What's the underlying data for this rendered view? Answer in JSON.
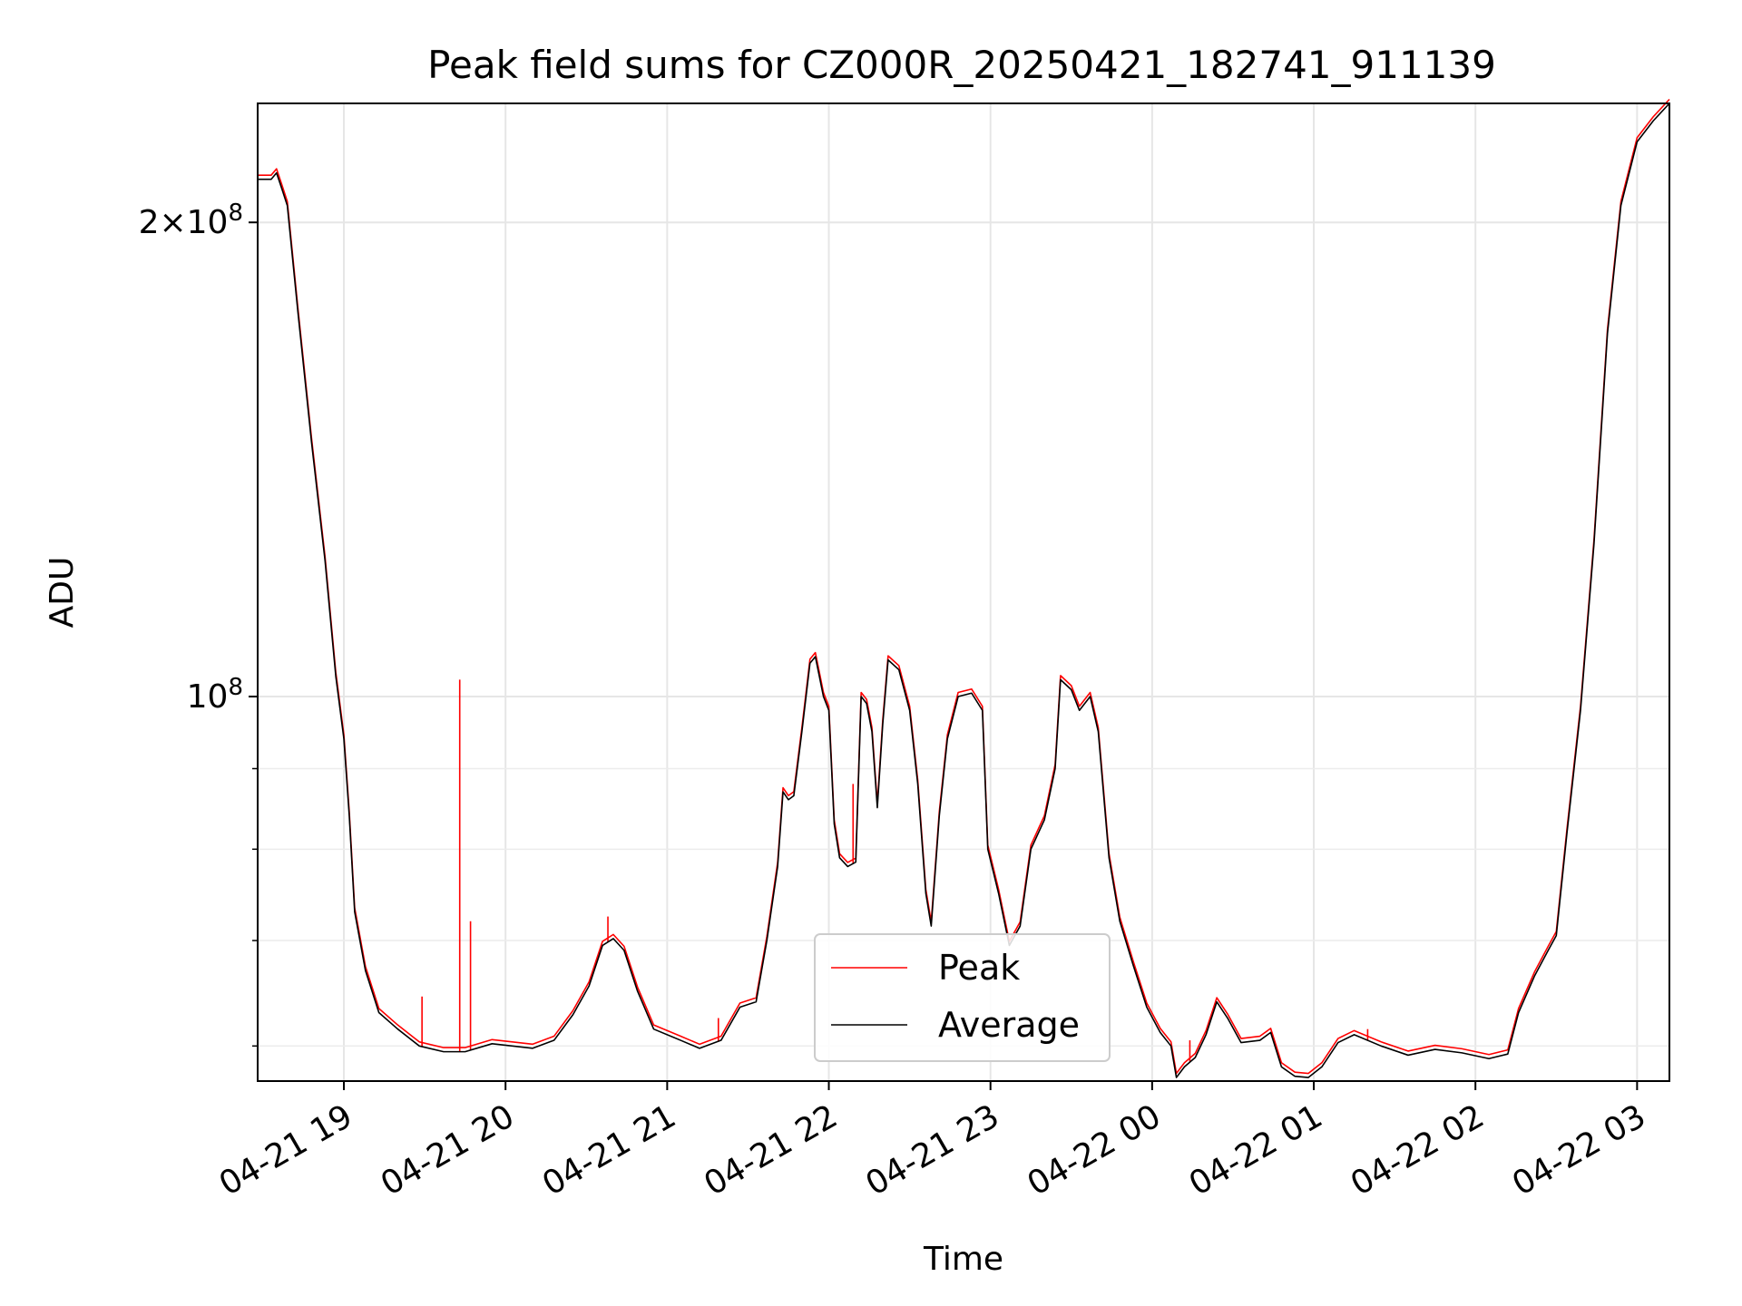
{
  "chart_data": {
    "type": "line",
    "title": "Peak field sums for CZ000R_20250421_182741_911139",
    "xlabel": "Time",
    "ylabel": "ADU",
    "yscale": "log",
    "xlim": [
      "2025-04-21 18:28",
      "2025-04-22 03:12"
    ],
    "ylim": [
      57000000,
      238000000
    ],
    "grid": true,
    "legend_position": "lower center",
    "x_ticks": [
      {
        "t": "2025-04-21 19:00",
        "label": "04-21 19"
      },
      {
        "t": "2025-04-21 20:00",
        "label": "04-21 20"
      },
      {
        "t": "2025-04-21 21:00",
        "label": "04-21 21"
      },
      {
        "t": "2025-04-21 22:00",
        "label": "04-21 22"
      },
      {
        "t": "2025-04-21 23:00",
        "label": "04-21 23"
      },
      {
        "t": "2025-04-22 00:00",
        "label": "04-22 00"
      },
      {
        "t": "2025-04-22 01:00",
        "label": "04-22 01"
      },
      {
        "t": "2025-04-22 02:00",
        "label": "04-22 02"
      },
      {
        "t": "2025-04-22 03:00",
        "label": "04-22 03"
      }
    ],
    "y_major_ticks": [
      {
        "value": 100000000,
        "base": "10",
        "exp": "8"
      },
      {
        "value": 200000000,
        "mantissa": "2",
        "base": "10",
        "exp": "8"
      }
    ],
    "y_minor_ticks": [
      60000000,
      70000000,
      80000000,
      90000000
    ],
    "series": [
      {
        "name": "Average",
        "color": "#000000",
        "points": [
          [
            "2025-04-21 18:28",
            213000000
          ],
          [
            "2025-04-21 18:33",
            213000000
          ],
          [
            "2025-04-21 18:35",
            215000000
          ],
          [
            "2025-04-21 18:37",
            210000000
          ],
          [
            "2025-04-21 18:39",
            205000000
          ],
          [
            "2025-04-21 18:43",
            175000000
          ],
          [
            "2025-04-21 18:48",
            145000000
          ],
          [
            "2025-04-21 18:53",
            122000000
          ],
          [
            "2025-04-21 18:57",
            103000000
          ],
          [
            "2025-04-21 19:00",
            94000000
          ],
          [
            "2025-04-21 19:02",
            84000000
          ],
          [
            "2025-04-21 19:04",
            73000000
          ],
          [
            "2025-04-21 19:08",
            67000000
          ],
          [
            "2025-04-21 19:13",
            63000000
          ],
          [
            "2025-04-21 19:20",
            61500000
          ],
          [
            "2025-04-21 19:28",
            60000000
          ],
          [
            "2025-04-21 19:37",
            59500000
          ],
          [
            "2025-04-21 19:45",
            59500000
          ],
          [
            "2025-04-21 19:55",
            60200000
          ],
          [
            "2025-04-21 20:10",
            59800000
          ],
          [
            "2025-04-21 20:18",
            60500000
          ],
          [
            "2025-04-21 20:25",
            62800000
          ],
          [
            "2025-04-21 20:31",
            65500000
          ],
          [
            "2025-04-21 20:36",
            69500000
          ],
          [
            "2025-04-21 20:40",
            70200000
          ],
          [
            "2025-04-21 20:44",
            69000000
          ],
          [
            "2025-04-21 20:49",
            65000000
          ],
          [
            "2025-04-21 20:55",
            61500000
          ],
          [
            "2025-04-21 21:05",
            60500000
          ],
          [
            "2025-04-21 21:12",
            59800000
          ],
          [
            "2025-04-21 21:20",
            60500000
          ],
          [
            "2025-04-21 21:27",
            63500000
          ],
          [
            "2025-04-21 21:33",
            64000000
          ],
          [
            "2025-04-21 21:37",
            70000000
          ],
          [
            "2025-04-21 21:41",
            78000000
          ],
          [
            "2025-04-21 21:43",
            87000000
          ],
          [
            "2025-04-21 21:45",
            86000000
          ],
          [
            "2025-04-21 21:47",
            86500000
          ],
          [
            "2025-04-21 21:50",
            95000000
          ],
          [
            "2025-04-21 21:53",
            105000000
          ],
          [
            "2025-04-21 21:55",
            106000000
          ],
          [
            "2025-04-21 21:58",
            100000000
          ],
          [
            "2025-04-21 22:00",
            98000000
          ],
          [
            "2025-04-21 22:02",
            83000000
          ],
          [
            "2025-04-21 22:04",
            79000000
          ],
          [
            "2025-04-21 22:07",
            78000000
          ],
          [
            "2025-04-21 22:10",
            78500000
          ],
          [
            "2025-04-21 22:12",
            100000000
          ],
          [
            "2025-04-21 22:14",
            99000000
          ],
          [
            "2025-04-21 22:16",
            95000000
          ],
          [
            "2025-04-21 22:18",
            85000000
          ],
          [
            "2025-04-21 22:20",
            96000000
          ],
          [
            "2025-04-21 22:22",
            105500000
          ],
          [
            "2025-04-21 22:26",
            104000000
          ],
          [
            "2025-04-21 22:30",
            98000000
          ],
          [
            "2025-04-21 22:33",
            88000000
          ],
          [
            "2025-04-21 22:36",
            75000000
          ],
          [
            "2025-04-21 22:38",
            71500000
          ],
          [
            "2025-04-21 22:41",
            84000000
          ],
          [
            "2025-04-21 22:44",
            94000000
          ],
          [
            "2025-04-21 22:48",
            100000000
          ],
          [
            "2025-04-21 22:53",
            100500000
          ],
          [
            "2025-04-21 22:57",
            98000000
          ],
          [
            "2025-04-21 22:59",
            80000000
          ],
          [
            "2025-04-21 23:03",
            75000000
          ],
          [
            "2025-04-21 23:07",
            69500000
          ],
          [
            "2025-04-21 23:11",
            71500000
          ],
          [
            "2025-04-21 23:15",
            80000000
          ],
          [
            "2025-04-21 23:20",
            83500000
          ],
          [
            "2025-04-21 23:24",
            90000000
          ],
          [
            "2025-04-21 23:26",
            102500000
          ],
          [
            "2025-04-21 23:30",
            101000000
          ],
          [
            "2025-04-21 23:33",
            98000000
          ],
          [
            "2025-04-21 23:37",
            100000000
          ],
          [
            "2025-04-21 23:40",
            95000000
          ],
          [
            "2025-04-21 23:44",
            79000000
          ],
          [
            "2025-04-21 23:48",
            72000000
          ],
          [
            "2025-04-21 23:53",
            67500000
          ],
          [
            "2025-04-21 23:58",
            63500000
          ],
          [
            "2025-04-22 00:03",
            61200000
          ],
          [
            "2025-04-22 00:07",
            60000000
          ],
          [
            "2025-04-22 00:09",
            57300000
          ],
          [
            "2025-04-22 00:12",
            58200000
          ],
          [
            "2025-04-22 00:16",
            59000000
          ],
          [
            "2025-04-22 00:20",
            61000000
          ],
          [
            "2025-04-22 00:24",
            64000000
          ],
          [
            "2025-04-22 00:28",
            62500000
          ],
          [
            "2025-04-22 00:33",
            60300000
          ],
          [
            "2025-04-22 00:40",
            60500000
          ],
          [
            "2025-04-22 00:44",
            61200000
          ],
          [
            "2025-04-22 00:48",
            58200000
          ],
          [
            "2025-04-22 00:53",
            57400000
          ],
          [
            "2025-04-22 00:58",
            57300000
          ],
          [
            "2025-04-22 01:03",
            58200000
          ],
          [
            "2025-04-22 01:09",
            60300000
          ],
          [
            "2025-04-22 01:15",
            61000000
          ],
          [
            "2025-04-22 01:25",
            60000000
          ],
          [
            "2025-04-22 01:35",
            59200000
          ],
          [
            "2025-04-22 01:45",
            59700000
          ],
          [
            "2025-04-22 01:55",
            59400000
          ],
          [
            "2025-04-22 02:05",
            58900000
          ],
          [
            "2025-04-22 02:12",
            59300000
          ],
          [
            "2025-04-22 02:16",
            63000000
          ],
          [
            "2025-04-22 02:22",
            66500000
          ],
          [
            "2025-04-22 02:27",
            69000000
          ],
          [
            "2025-04-22 02:30",
            70500000
          ],
          [
            "2025-04-22 02:34",
            82000000
          ],
          [
            "2025-04-22 02:39",
            98000000
          ],
          [
            "2025-04-22 02:44",
            125000000
          ],
          [
            "2025-04-22 02:49",
            170000000
          ],
          [
            "2025-04-22 02:54",
            205000000
          ],
          [
            "2025-04-22 03:00",
            225000000
          ],
          [
            "2025-04-22 03:06",
            232000000
          ],
          [
            "2025-04-22 03:12",
            238000000
          ]
        ]
      },
      {
        "name": "Peak",
        "color": "#ff0000",
        "follows": "Average",
        "spikes": [
          [
            "2025-04-21 19:29",
            64500000
          ],
          [
            "2025-04-21 19:43",
            102500000
          ],
          [
            "2025-04-21 19:47",
            72000000
          ],
          [
            "2025-04-21 20:38",
            72500000
          ],
          [
            "2025-04-21 21:19",
            62500000
          ],
          [
            "2025-04-21 22:09",
            88000000
          ],
          [
            "2025-04-22 00:14",
            60500000
          ],
          [
            "2025-04-22 01:20",
            61500000
          ]
        ]
      }
    ]
  }
}
